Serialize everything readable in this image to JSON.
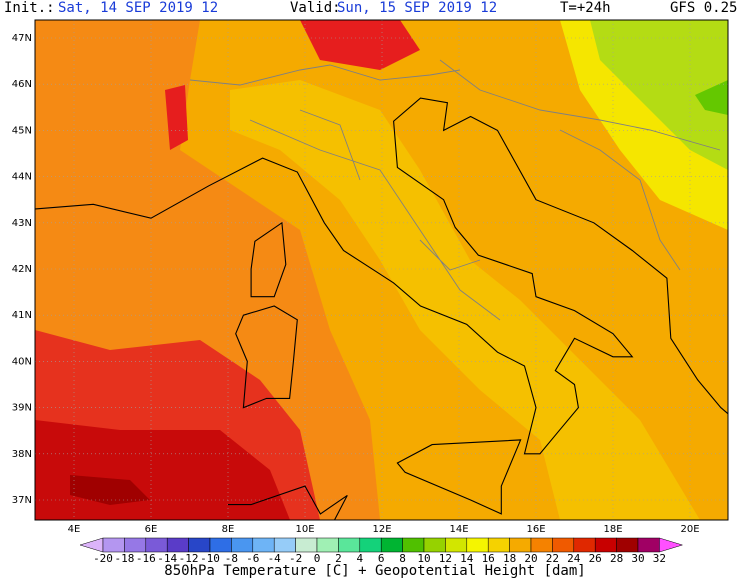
{
  "header": {
    "init_label": "Init.:",
    "init": "Sat, 14 SEP 2019  12",
    "valid_label": "Valid:",
    "valid": "Sun, 15 SEP 2019  12",
    "lead": "T=+24h",
    "model": "GFS 0.25"
  },
  "map": {
    "lat_labels": [
      "47N",
      "46N",
      "45N",
      "44N",
      "43N",
      "42N",
      "41N",
      "40N",
      "39N",
      "38N",
      "37N"
    ],
    "lon_labels": [
      "4E",
      "6E",
      "8E",
      "10E",
      "12E",
      "14E",
      "16E",
      "18E",
      "20E"
    ]
  },
  "colorbar": {
    "labels": [
      "-20",
      "-18",
      "-16",
      "-14",
      "-12",
      "-10",
      "-8",
      "-6",
      "-4",
      "-2",
      "0",
      "2",
      "4",
      "6",
      "8",
      "10",
      "12",
      "14",
      "16",
      "18",
      "20",
      "22",
      "24",
      "26",
      "28",
      "30",
      "32"
    ],
    "colors": [
      "#dcb4fa",
      "#b496f0",
      "#9678e6",
      "#7a5ad8",
      "#5a3cc8",
      "#2846c8",
      "#2e6ee6",
      "#4a96f0",
      "#6eb4f6",
      "#96ccf8",
      "#c8ecd2",
      "#a0f0b4",
      "#5ae69a",
      "#14d27a",
      "#00b432",
      "#50c000",
      "#96d200",
      "#d2e600",
      "#f5f500",
      "#f5d200",
      "#f5aa00",
      "#f58200",
      "#f05a00",
      "#e02800",
      "#c80000",
      "#a00000",
      "#a00064",
      "#d200d2",
      "#ff50ff"
    ]
  },
  "footer": {
    "title": "850hPa Temperature [C] + Geopotential Height [dam]"
  }
}
